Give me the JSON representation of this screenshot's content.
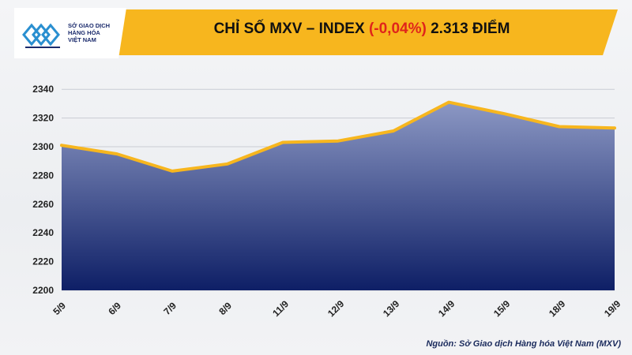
{
  "logo": {
    "line1": "SỞ GIAO DỊCH",
    "line2": "HÀNG HÓA",
    "line3": "VIỆT NAM"
  },
  "title": {
    "prefix": "CHỈ SỐ MXV – INDEX",
    "change": "(-0,04%)",
    "suffix": "2.313 ĐIỂM"
  },
  "colors": {
    "band": "#f7b61e",
    "line": "#f7b61e",
    "change_negative": "#e0241b",
    "area_top": "#8c98c4",
    "area_bottom": "#0e1f66"
  },
  "chart_data": {
    "type": "area",
    "categories": [
      "5/9",
      "6/9",
      "7/9",
      "8/9",
      "11/9",
      "12/9",
      "13/9",
      "14/9",
      "15/9",
      "18/9",
      "19/9"
    ],
    "values": [
      2301,
      2295,
      2283,
      2288,
      2303,
      2304,
      2311,
      2331,
      2323,
      2314,
      2313
    ],
    "yticks": [
      2200,
      2220,
      2240,
      2260,
      2280,
      2300,
      2320,
      2340
    ],
    "ylim": [
      2200,
      2350
    ],
    "grid": true
  },
  "source": "Nguồn: Sở Giao dịch Hàng hóa Việt Nam (MXV)"
}
